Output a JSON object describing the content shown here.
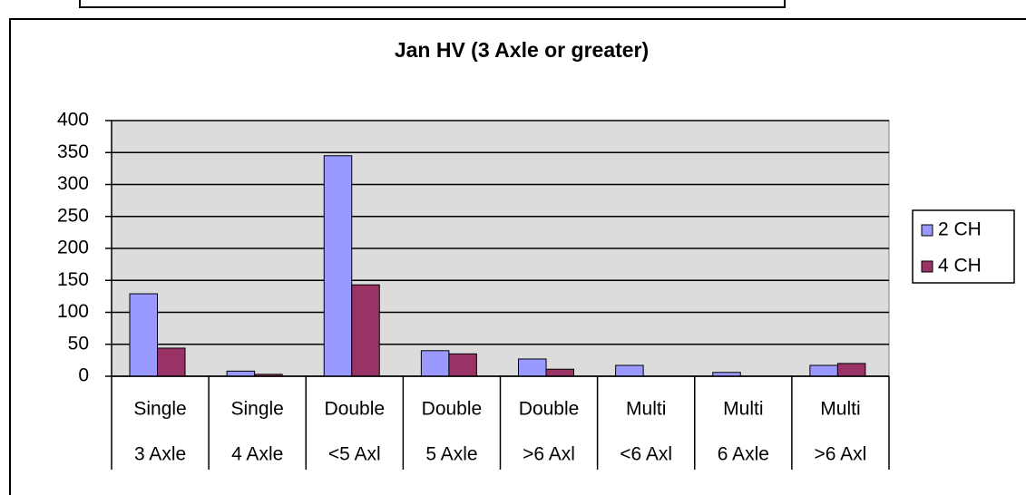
{
  "chart_data": {
    "type": "bar",
    "title": "Jan HV (3 Axle or greater)",
    "categories": [
      [
        "Single",
        "3 Axle"
      ],
      [
        "Single",
        "4 Axle"
      ],
      [
        "Double",
        "<5 Axl"
      ],
      [
        "Double",
        "5 Axle"
      ],
      [
        "Double",
        ">6 Axl"
      ],
      [
        "Multi",
        "<6 Axl"
      ],
      [
        "Multi",
        "6 Axle"
      ],
      [
        "Multi",
        ">6 Axl"
      ]
    ],
    "series": [
      {
        "name": "2 CH",
        "color": "#9999ff",
        "values": [
          129,
          8,
          345,
          40,
          27,
          17,
          6,
          17
        ]
      },
      {
        "name": "4 CH",
        "color": "#993366",
        "values": [
          44,
          3,
          143,
          35,
          11,
          0,
          0,
          20
        ]
      }
    ],
    "ylim": [
      0,
      400
    ],
    "yticks": [
      0,
      50,
      100,
      150,
      200,
      250,
      300,
      350,
      400
    ],
    "grid": true,
    "legend": "right"
  }
}
